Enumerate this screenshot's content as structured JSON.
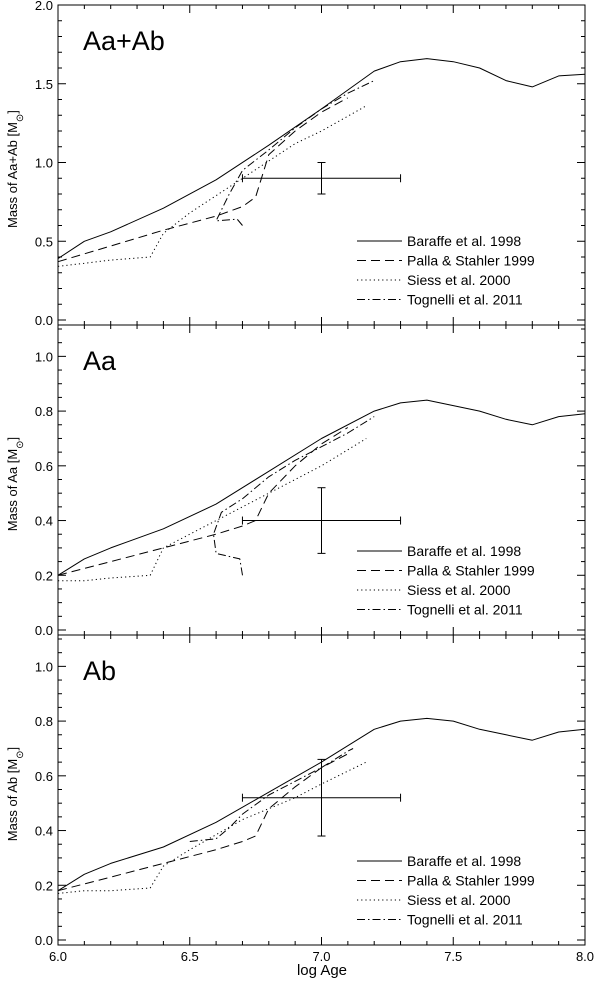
{
  "figure": {
    "xlabel": "log Age"
  },
  "chart_data": [
    {
      "type": "line",
      "label": "Aa+Ab",
      "ylabel": "Mass of Aa+Ab [M",
      "ylabel_sub": "⊙",
      "xlim": [
        6.0,
        8.0
      ],
      "ylim": [
        0.0,
        2.0
      ],
      "xticks": [
        6.0,
        6.5,
        7.0,
        7.5,
        8.0
      ],
      "xtick_labels": [
        "6.0",
        "6.5",
        "7.0",
        "7.5",
        "8.0"
      ],
      "yticks": [
        0.0,
        0.5,
        1.0,
        1.5,
        2.0
      ],
      "ytick_labels": [
        "0.0",
        "0.5",
        "1.0",
        "1.5",
        "2.0"
      ],
      "legend": [
        "Baraffe et al. 1998",
        "Palla & Stahler 1999",
        "Siess et al. 2000",
        "Tognelli et al. 2011"
      ],
      "legend_loc": "lower-right",
      "series": [
        {
          "name": "Baraffe et al. 1998",
          "style": "solid",
          "x": [
            6.0,
            6.1,
            6.2,
            6.4,
            6.6,
            6.8,
            7.0,
            7.2,
            7.3,
            7.4,
            7.5,
            7.6,
            7.7,
            7.8,
            7.9,
            8.0
          ],
          "y": [
            0.39,
            0.5,
            0.56,
            0.71,
            0.89,
            1.11,
            1.34,
            1.58,
            1.64,
            1.66,
            1.64,
            1.6,
            1.52,
            1.48,
            1.55,
            1.56
          ]
        },
        {
          "name": "Palla & Stahler 1999",
          "style": "dashed",
          "x": [
            6.0,
            6.2,
            6.4,
            6.6,
            6.7,
            6.75,
            6.8,
            6.9,
            7.0,
            7.1
          ],
          "y": [
            0.37,
            0.47,
            0.57,
            0.66,
            0.72,
            0.78,
            1.05,
            1.2,
            1.32,
            1.41
          ]
        },
        {
          "name": "Siess et al. 2000",
          "style": "dotted",
          "x": [
            6.0,
            6.1,
            6.2,
            6.35,
            6.4,
            6.5,
            6.7,
            6.9,
            7.0,
            7.17
          ],
          "y": [
            0.34,
            0.36,
            0.38,
            0.4,
            0.55,
            0.68,
            0.9,
            1.12,
            1.2,
            1.36
          ]
        },
        {
          "name": "Tognelli et al. 2011",
          "style": "dashdot",
          "x": [
            6.7,
            6.68,
            6.6,
            6.65,
            6.7,
            6.8,
            6.9,
            7.0,
            7.1,
            7.2
          ],
          "y": [
            0.6,
            0.64,
            0.63,
            0.8,
            0.95,
            1.08,
            1.22,
            1.34,
            1.44,
            1.52
          ]
        }
      ],
      "errorbar": {
        "x": 7.0,
        "y": 0.9,
        "xerr": [
          6.7,
          7.3
        ],
        "yerr": [
          0.8,
          1.0
        ]
      }
    },
    {
      "type": "line",
      "label": "Aa",
      "ylabel": "Mass of Aa [M",
      "ylabel_sub": "⊙",
      "xlim": [
        6.0,
        8.0
      ],
      "ylim": [
        0.0,
        1.1
      ],
      "xticks": [
        6.0,
        6.5,
        7.0,
        7.5,
        8.0
      ],
      "xtick_labels": [
        "6.0",
        "6.5",
        "7.0",
        "7.5",
        "8.0"
      ],
      "yticks": [
        0.0,
        0.2,
        0.4,
        0.6,
        0.8,
        1.0
      ],
      "ytick_labels": [
        "0.0",
        "0.2",
        "0.4",
        "0.6",
        "0.8",
        "1.0"
      ],
      "legend": [
        "Baraffe et al. 1998",
        "Palla & Stahler 1999",
        "Siess et al. 2000",
        "Tognelli et al. 2011"
      ],
      "legend_loc": "lower-right",
      "series": [
        {
          "name": "Baraffe et al. 1998",
          "style": "solid",
          "x": [
            6.0,
            6.1,
            6.2,
            6.4,
            6.6,
            6.8,
            7.0,
            7.2,
            7.3,
            7.4,
            7.5,
            7.6,
            7.7,
            7.8,
            7.9,
            8.0
          ],
          "y": [
            0.2,
            0.26,
            0.3,
            0.37,
            0.46,
            0.58,
            0.7,
            0.8,
            0.83,
            0.84,
            0.82,
            0.8,
            0.77,
            0.75,
            0.78,
            0.79
          ]
        },
        {
          "name": "Palla & Stahler 1999",
          "style": "dashed",
          "x": [
            6.0,
            6.2,
            6.4,
            6.6,
            6.7,
            6.75,
            6.8,
            6.9,
            7.0,
            7.1
          ],
          "y": [
            0.2,
            0.25,
            0.3,
            0.35,
            0.38,
            0.4,
            0.5,
            0.6,
            0.68,
            0.74
          ]
        },
        {
          "name": "Siess et al. 2000",
          "style": "dotted",
          "x": [
            6.0,
            6.1,
            6.2,
            6.35,
            6.4,
            6.5,
            6.7,
            6.9,
            7.0,
            7.17
          ],
          "y": [
            0.18,
            0.18,
            0.19,
            0.2,
            0.3,
            0.35,
            0.45,
            0.55,
            0.6,
            0.7
          ]
        },
        {
          "name": "Tognelli et al. 2011",
          "style": "dashdot",
          "x": [
            6.7,
            6.69,
            6.6,
            6.59,
            6.62,
            6.7,
            6.8,
            6.9,
            7.0,
            7.1,
            7.2
          ],
          "y": [
            0.2,
            0.26,
            0.28,
            0.35,
            0.43,
            0.48,
            0.56,
            0.62,
            0.67,
            0.72,
            0.78
          ]
        }
      ],
      "errorbar": {
        "x": 7.0,
        "y": 0.4,
        "xerr": [
          6.7,
          7.3
        ],
        "yerr": [
          0.28,
          0.52
        ]
      }
    },
    {
      "type": "line",
      "label": "Ab",
      "ylabel": "Mass of Ab [M",
      "ylabel_sub": "⊙",
      "xlim": [
        6.0,
        8.0
      ],
      "ylim": [
        0.0,
        1.1
      ],
      "xticks": [
        6.0,
        6.5,
        7.0,
        7.5,
        8.0
      ],
      "xtick_labels": [
        "6.0",
        "6.5",
        "7.0",
        "7.5",
        "8.0"
      ],
      "yticks": [
        0.0,
        0.2,
        0.4,
        0.6,
        0.8,
        1.0
      ],
      "ytick_labels": [
        "0.0",
        "0.2",
        "0.4",
        "0.6",
        "0.8",
        "1.0"
      ],
      "legend": [
        "Baraffe et al. 1998",
        "Palla & Stahler 1999",
        "Siess et al. 2000",
        "Tognelli et al. 2011"
      ],
      "legend_loc": "lower-right",
      "series": [
        {
          "name": "Baraffe et al. 1998",
          "style": "solid",
          "x": [
            6.0,
            6.1,
            6.2,
            6.4,
            6.6,
            6.8,
            7.0,
            7.2,
            7.3,
            7.4,
            7.5,
            7.6,
            7.7,
            7.8,
            7.9,
            8.0
          ],
          "y": [
            0.18,
            0.24,
            0.28,
            0.34,
            0.43,
            0.54,
            0.65,
            0.77,
            0.8,
            0.81,
            0.8,
            0.77,
            0.75,
            0.73,
            0.76,
            0.77
          ]
        },
        {
          "name": "Palla & Stahler 1999",
          "style": "dashed",
          "x": [
            6.0,
            6.2,
            6.4,
            6.6,
            6.7,
            6.75,
            6.8,
            6.9,
            7.0,
            7.1
          ],
          "y": [
            0.18,
            0.23,
            0.28,
            0.33,
            0.36,
            0.38,
            0.48,
            0.56,
            0.63,
            0.68
          ]
        },
        {
          "name": "Siess et al. 2000",
          "style": "dotted",
          "x": [
            6.0,
            6.1,
            6.2,
            6.35,
            6.4,
            6.5,
            6.7,
            6.9,
            7.0,
            7.17
          ],
          "y": [
            0.17,
            0.18,
            0.18,
            0.19,
            0.27,
            0.33,
            0.44,
            0.52,
            0.57,
            0.65
          ]
        },
        {
          "name": "Tognelli et al. 2011",
          "style": "dashdot",
          "x": [
            6.5,
            6.6,
            6.65,
            6.7,
            6.8,
            6.9,
            7.0,
            7.1,
            7.12
          ],
          "y": [
            0.36,
            0.37,
            0.41,
            0.46,
            0.53,
            0.58,
            0.63,
            0.69,
            0.7
          ]
        }
      ],
      "errorbar": {
        "x": 7.0,
        "y": 0.52,
        "xerr": [
          6.7,
          7.3
        ],
        "yerr": [
          0.38,
          0.66
        ]
      }
    }
  ]
}
